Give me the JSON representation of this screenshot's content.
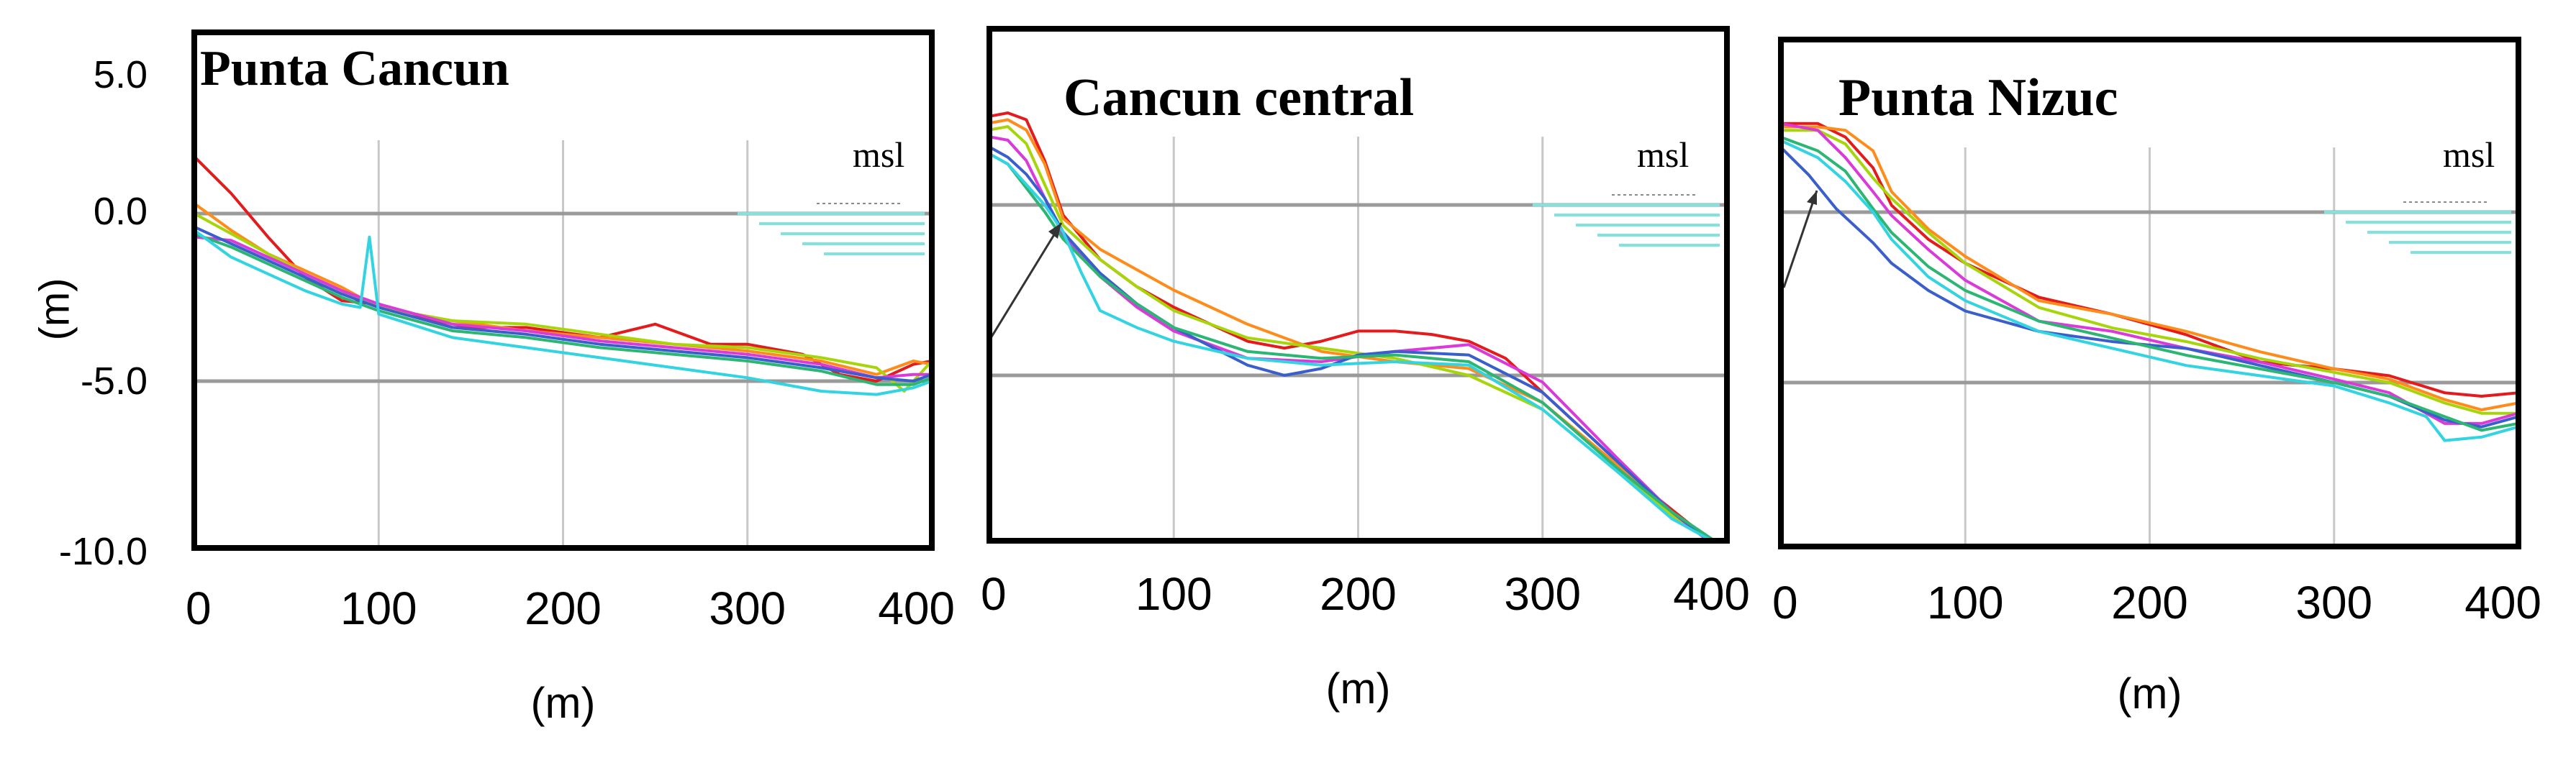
{
  "figure": {
    "y_axis_label": "(m)",
    "y_tick_labels": [
      "5.0",
      "0.0",
      "-5.0",
      "-10.0"
    ]
  },
  "chart_data": [
    {
      "type": "line",
      "title": "Punta Cancun",
      "annotation": "msl",
      "xlabel": "(m)",
      "ylabel": "(m)",
      "xlim": [
        0,
        400
      ],
      "ylim": [
        -10.5,
        5.2
      ],
      "x_ticks": [
        "0",
        "100",
        "200",
        "300",
        "400"
      ],
      "y_ticks": [
        "5.0",
        "0.0",
        "-5.0",
        "-10.0"
      ],
      "gridlines_x": [
        100,
        200,
        300
      ],
      "reference_lines_y": [
        0,
        -5
      ],
      "series": [
        {
          "name": "red",
          "color": "#e41a1c",
          "x": [
            0,
            20,
            40,
            60,
            80,
            100,
            140,
            180,
            220,
            250,
            280,
            300,
            330,
            350,
            370,
            390,
            400
          ],
          "y": [
            1.7,
            0.6,
            -0.7,
            -1.9,
            -2.6,
            -2.7,
            -3.4,
            -3.4,
            -3.7,
            -3.3,
            -3.9,
            -3.9,
            -4.2,
            -4.8,
            -5,
            -4.5,
            -4.4
          ]
        },
        {
          "name": "orange",
          "color": "#ff8c1a",
          "x": [
            0,
            20,
            40,
            60,
            80,
            100,
            140,
            180,
            220,
            260,
            300,
            340,
            370,
            390,
            400
          ],
          "y": [
            0.3,
            -0.5,
            -1.2,
            -1.7,
            -2.2,
            -2.8,
            -3.2,
            -3.5,
            -3.7,
            -3.9,
            -4.1,
            -4.4,
            -4.8,
            -4.4,
            -4.5
          ]
        },
        {
          "name": "yellow-green",
          "color": "#a6d609",
          "x": [
            0,
            20,
            40,
            60,
            80,
            100,
            140,
            180,
            220,
            260,
            300,
            340,
            370,
            385,
            400
          ],
          "y": [
            0,
            -0.6,
            -1.2,
            -1.8,
            -2.3,
            -2.8,
            -3.2,
            -3.3,
            -3.6,
            -3.9,
            -4,
            -4.3,
            -4.6,
            -5.3,
            -4.4
          ]
        },
        {
          "name": "magenta",
          "color": "#d93ad9",
          "x": [
            0,
            20,
            40,
            60,
            80,
            100,
            140,
            180,
            220,
            260,
            300,
            340,
            370,
            390,
            400
          ],
          "y": [
            -0.7,
            -0.8,
            -1.3,
            -1.8,
            -2.3,
            -2.7,
            -3.3,
            -3.5,
            -3.8,
            -4,
            -4.2,
            -4.5,
            -4.9,
            -4.8,
            -4.8
          ]
        },
        {
          "name": "blue",
          "color": "#3a5fcd",
          "x": [
            0,
            20,
            40,
            60,
            80,
            100,
            140,
            180,
            220,
            260,
            300,
            340,
            370,
            390,
            400
          ],
          "y": [
            -0.4,
            -0.9,
            -1.4,
            -1.9,
            -2.4,
            -2.8,
            -3.4,
            -3.6,
            -3.9,
            -4.1,
            -4.3,
            -4.6,
            -4.9,
            -5,
            -4.8
          ]
        },
        {
          "name": "green",
          "color": "#2bb673",
          "x": [
            0,
            20,
            40,
            60,
            80,
            100,
            140,
            180,
            220,
            260,
            300,
            340,
            370,
            390,
            400
          ],
          "y": [
            -0.6,
            -1,
            -1.5,
            -2,
            -2.5,
            -2.9,
            -3.5,
            -3.7,
            -4,
            -4.2,
            -4.4,
            -4.7,
            -5.1,
            -5.1,
            -4.9
          ]
        },
        {
          "name": "cyan",
          "color": "#31d4e0",
          "x": [
            0,
            20,
            40,
            60,
            80,
            90,
            95,
            100,
            140,
            180,
            220,
            260,
            300,
            340,
            370,
            390,
            400
          ],
          "y": [
            -0.5,
            -1.3,
            -1.8,
            -2.3,
            -2.7,
            -2.8,
            -0.7,
            -3,
            -3.7,
            -4,
            -4.3,
            -4.6,
            -4.9,
            -5.3,
            -5.4,
            -5.2,
            -5
          ]
        }
      ]
    },
    {
      "type": "line",
      "title": "Cancun central",
      "annotation": "msl",
      "xlabel": "(m)",
      "ylabel": "(m)",
      "xlim": [
        0,
        400
      ],
      "ylim": [
        -10.5,
        5.2
      ],
      "x_ticks": [
        "0",
        "100",
        "200",
        "300",
        "400"
      ],
      "y_ticks": [
        "5.0",
        "0.0",
        "-5.0",
        "-10.0"
      ],
      "gridlines_x": [
        100,
        200,
        300
      ],
      "reference_lines_y": [
        0,
        -5
      ],
      "series": [
        {
          "name": "red",
          "color": "#e41a1c",
          "x": [
            0,
            10,
            20,
            30,
            40,
            60,
            80,
            100,
            120,
            140,
            160,
            180,
            200,
            220,
            240,
            260,
            280,
            300,
            330,
            360,
            390,
            400
          ],
          "y": [
            2.6,
            2.7,
            2.5,
            1.3,
            -0.3,
            -1.6,
            -2.4,
            -3,
            -3.5,
            -4,
            -4.2,
            -4,
            -3.7,
            -3.7,
            -3.8,
            -4,
            -4.5,
            -5.5,
            -7,
            -8.5,
            -9.8,
            -10.3
          ]
        },
        {
          "name": "orange",
          "color": "#ff8c1a",
          "x": [
            0,
            10,
            20,
            30,
            40,
            60,
            80,
            100,
            140,
            180,
            220,
            260,
            300,
            340,
            370,
            400
          ],
          "y": [
            2.4,
            2.5,
            2.2,
            1.2,
            -0.4,
            -1.3,
            -1.9,
            -2.5,
            -3.5,
            -4.3,
            -4.6,
            -4.8,
            -5.8,
            -7.6,
            -9,
            -10.3
          ]
        },
        {
          "name": "yellow-green",
          "color": "#a6d609",
          "x": [
            0,
            10,
            20,
            30,
            40,
            60,
            80,
            100,
            140,
            180,
            220,
            260,
            300,
            340,
            370,
            400
          ],
          "y": [
            2.2,
            2.3,
            1.8,
            0.6,
            -0.6,
            -1.6,
            -2.4,
            -3.1,
            -3.9,
            -4.2,
            -4.5,
            -5,
            -6,
            -7.8,
            -9.1,
            -10.2
          ]
        },
        {
          "name": "magenta",
          "color": "#d93ad9",
          "x": [
            0,
            10,
            20,
            30,
            40,
            60,
            80,
            100,
            140,
            180,
            220,
            260,
            300,
            340,
            370,
            400
          ],
          "y": [
            2,
            1.9,
            1.3,
            0.2,
            -0.9,
            -2.1,
            -3,
            -3.7,
            -4.5,
            -4.6,
            -4.3,
            -4.1,
            -5.2,
            -7.4,
            -9,
            -10.3
          ]
        },
        {
          "name": "blue",
          "color": "#3a5fcd",
          "x": [
            0,
            10,
            20,
            30,
            40,
            60,
            80,
            100,
            140,
            160,
            180,
            200,
            220,
            260,
            300,
            340,
            370,
            400
          ],
          "y": [
            1.7,
            1.4,
            0.9,
            0.2,
            -0.8,
            -2,
            -2.9,
            -3.6,
            -4.7,
            -5,
            -4.8,
            -4.4,
            -4.3,
            -4.4,
            -5.5,
            -7.5,
            -9,
            -10.2
          ]
        },
        {
          "name": "green",
          "color": "#2bb673",
          "x": [
            0,
            10,
            20,
            30,
            40,
            60,
            80,
            100,
            140,
            180,
            220,
            260,
            300,
            340,
            370,
            400
          ],
          "y": [
            1.5,
            1.2,
            0.5,
            -0.2,
            -1,
            -2.1,
            -2.9,
            -3.6,
            -4.3,
            -4.5,
            -4.4,
            -4.6,
            -5.8,
            -7.7,
            -9,
            -10.1
          ]
        },
        {
          "name": "cyan",
          "color": "#31d4e0",
          "x": [
            0,
            10,
            20,
            30,
            40,
            50,
            60,
            80,
            100,
            140,
            180,
            220,
            260,
            300,
            340,
            370,
            400
          ],
          "y": [
            1.5,
            1.2,
            0.6,
            0,
            -0.8,
            -2,
            -3.1,
            -3.6,
            -4,
            -4.5,
            -4.7,
            -4.6,
            -4.7,
            -6,
            -7.8,
            -9.2,
            -10.1
          ]
        }
      ]
    },
    {
      "type": "line",
      "title": "Punta Nizuc",
      "annotation": "msl",
      "xlabel": "(m)",
      "ylabel": "(m)",
      "xlim": [
        0,
        400
      ],
      "ylim": [
        -10.5,
        5.2
      ],
      "x_ticks": [
        "0",
        "100",
        "200",
        "300",
        "400"
      ],
      "y_ticks": [
        "5.0",
        "0.0",
        "-5.0",
        "-10.0"
      ],
      "gridlines_x": [
        100,
        200,
        300
      ],
      "reference_lines_y": [
        0,
        -5
      ],
      "series": [
        {
          "name": "red",
          "color": "#e41a1c",
          "x": [
            0,
            20,
            35,
            50,
            60,
            80,
            100,
            140,
            180,
            220,
            260,
            300,
            330,
            360,
            380,
            400
          ],
          "y": [
            2.6,
            2.6,
            2.2,
            1.3,
            0.2,
            -0.8,
            -1.5,
            -2.5,
            -3,
            -3.6,
            -4.4,
            -4.6,
            -4.8,
            -5.3,
            -5.4,
            -5.3
          ]
        },
        {
          "name": "orange",
          "color": "#ff8c1a",
          "x": [
            0,
            20,
            35,
            50,
            60,
            80,
            100,
            140,
            180,
            220,
            260,
            300,
            330,
            360,
            380,
            400
          ],
          "y": [
            2.5,
            2.5,
            2.4,
            1.8,
            0.6,
            -0.5,
            -1.3,
            -2.6,
            -3,
            -3.5,
            -4.1,
            -4.6,
            -4.9,
            -5.5,
            -5.8,
            -5.6
          ]
        },
        {
          "name": "yellow-green",
          "color": "#a6d609",
          "x": [
            0,
            20,
            35,
            50,
            60,
            80,
            100,
            140,
            180,
            220,
            260,
            300,
            330,
            360,
            380,
            400
          ],
          "y": [
            2.4,
            2.4,
            2,
            1,
            0.4,
            -0.6,
            -1.5,
            -2.8,
            -3.4,
            -3.8,
            -4.3,
            -4.7,
            -5,
            -5.6,
            -5.9,
            -5.9
          ]
        },
        {
          "name": "magenta",
          "color": "#d93ad9",
          "x": [
            0,
            20,
            35,
            50,
            60,
            80,
            100,
            140,
            180,
            220,
            260,
            300,
            330,
            360,
            380,
            400
          ],
          "y": [
            2.6,
            2.4,
            1.6,
            0.6,
            -0.1,
            -1.1,
            -2,
            -3.2,
            -3.5,
            -4,
            -4.4,
            -4.9,
            -5.3,
            -6.2,
            -6.2,
            -5.9
          ]
        },
        {
          "name": "blue",
          "color": "#3a5fcd",
          "x": [
            0,
            15,
            30,
            50,
            60,
            80,
            100,
            140,
            180,
            220,
            260,
            300,
            330,
            360,
            380,
            400
          ],
          "y": [
            1.9,
            1.1,
            0.1,
            -0.9,
            -1.5,
            -2.3,
            -2.9,
            -3.5,
            -3.8,
            -4,
            -4.5,
            -5,
            -5.4,
            -6.1,
            -6.3,
            -6
          ]
        },
        {
          "name": "green",
          "color": "#2bb673",
          "x": [
            0,
            20,
            35,
            50,
            60,
            80,
            100,
            140,
            180,
            220,
            260,
            300,
            330,
            360,
            380,
            400
          ],
          "y": [
            2.2,
            1.8,
            1.2,
            0.1,
            -0.6,
            -1.6,
            -2.3,
            -3.2,
            -3.7,
            -4.2,
            -4.6,
            -5,
            -5.4,
            -6,
            -6.4,
            -6.2
          ]
        },
        {
          "name": "cyan",
          "color": "#31d4e0",
          "x": [
            0,
            20,
            35,
            50,
            60,
            80,
            100,
            140,
            180,
            220,
            260,
            300,
            330,
            350,
            360,
            380,
            400
          ],
          "y": [
            2.1,
            1.6,
            0.9,
            0,
            -0.8,
            -1.9,
            -2.6,
            -3.5,
            -4,
            -4.5,
            -4.8,
            -5.1,
            -5.6,
            -6,
            -6.7,
            -6.6,
            -6.3
          ]
        }
      ]
    }
  ]
}
